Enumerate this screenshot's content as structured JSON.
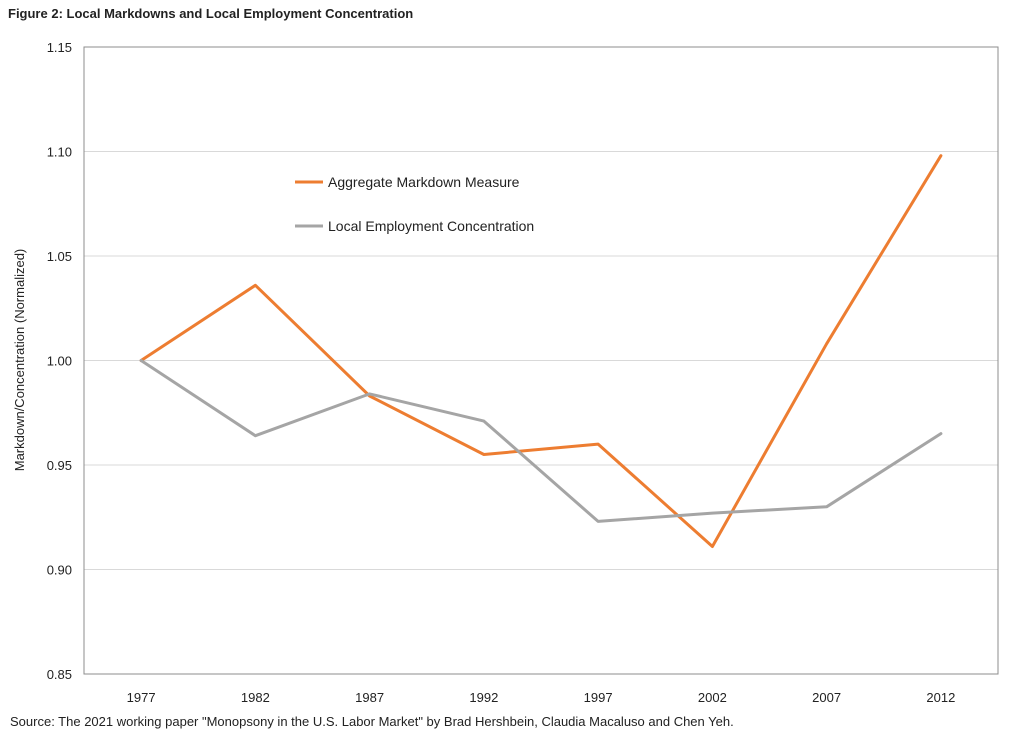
{
  "figure": {
    "title": "Figure 2: Local Markdowns and Local Employment Concentration",
    "source": "Source: The 2021  working paper \"Monopsony in the U.S. Labor Market\" by Brad Hershbein, Claudia Macaluso and Chen Yeh."
  },
  "chart_data": {
    "type": "line",
    "title": "",
    "xlabel": "",
    "ylabel": "Markdown/Concentration  (Normalized)",
    "categories": [
      "1977",
      "1982",
      "1987",
      "1992",
      "1997",
      "2002",
      "2007",
      "2012"
    ],
    "ylim": [
      0.85,
      1.15
    ],
    "yticks": [
      "0.85",
      "0.90",
      "0.95",
      "1.00",
      "1.05",
      "1.10",
      "1.15"
    ],
    "grid": true,
    "legend_position": "upper-left-inside",
    "series": [
      {
        "name": "Aggregate Markdown Measure",
        "color": "#ed7d31",
        "values": [
          1.0,
          1.036,
          0.983,
          0.955,
          0.96,
          0.911,
          1.008,
          1.098
        ]
      },
      {
        "name": "Local Employment Concentration",
        "color": "#a5a5a5",
        "values": [
          1.0,
          0.964,
          0.984,
          0.971,
          0.923,
          0.927,
          0.93,
          0.965
        ]
      }
    ]
  }
}
